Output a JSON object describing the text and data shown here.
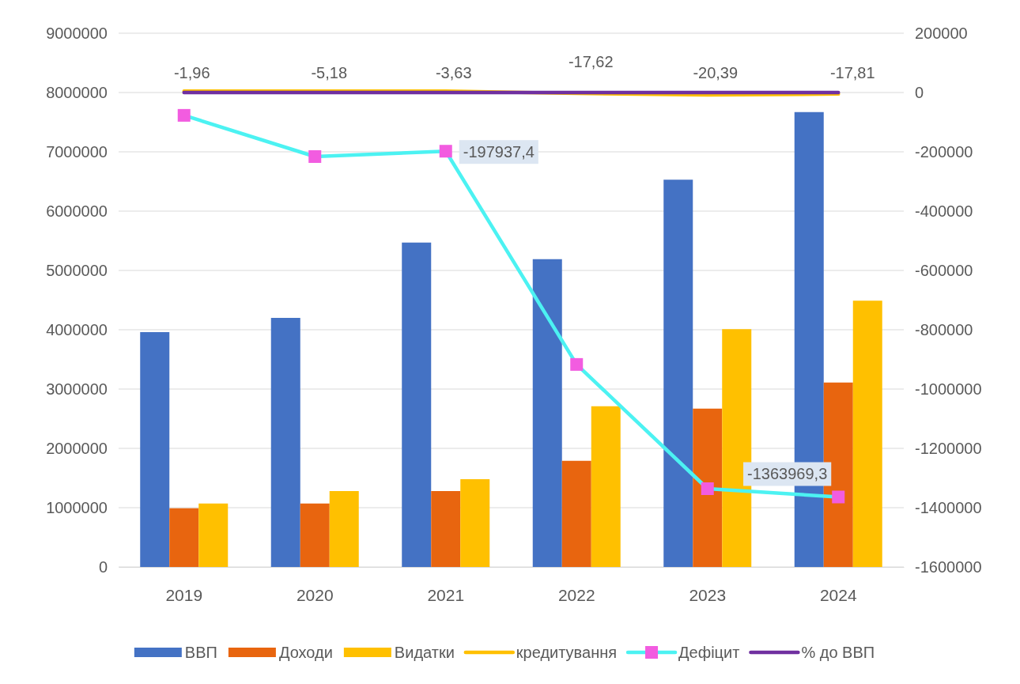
{
  "chart_data": {
    "type": "bar",
    "categories": [
      "2019",
      "2020",
      "2021",
      "2022",
      "2023",
      "2024"
    ],
    "series": [
      {
        "name": "ВВП",
        "color": "#4472c4",
        "values": [
          3960000,
          4200000,
          5470000,
          5190000,
          6530000,
          7670000
        ]
      },
      {
        "name": "Доходи",
        "color": "#e8650f",
        "values": [
          990000,
          1070000,
          1280000,
          1790000,
          2670000,
          3110000
        ]
      },
      {
        "name": "Видатки",
        "color": "#ffc000",
        "values": [
          1070000,
          1280000,
          1480000,
          2710000,
          4010000,
          4490000
        ]
      },
      {
        "name": "кредитування",
        "type": "line",
        "axis": "y2",
        "color": "#ffc000",
        "marker": "none",
        "values": [
          5000,
          5000,
          5000,
          -3000,
          -8000,
          -5000
        ]
      },
      {
        "name": "Дефіцит",
        "type": "line",
        "axis": "y2",
        "color": "#4cf2f2",
        "marker": "square",
        "values": [
          -77000,
          -216000,
          -197937.4,
          -917000,
          -1336000,
          -1363969.3
        ],
        "value_labels": [
          null,
          null,
          "-197937,4",
          null,
          null,
          "-1363969,3"
        ]
      },
      {
        "name": "% до ВВП",
        "type": "line",
        "axis": "y2",
        "color": "#7030a0",
        "marker": "none",
        "values": [
          -1.96,
          -5.18,
          -3.63,
          -17.62,
          -20.39,
          -17.81
        ],
        "value_labels": [
          "-1,96",
          "-5,18",
          "-3,63",
          "-17,62",
          "-20,39",
          "-17,81"
        ]
      }
    ],
    "ylim": [
      0,
      9000000
    ],
    "yticks": [
      0,
      1000000,
      2000000,
      3000000,
      4000000,
      5000000,
      6000000,
      7000000,
      8000000,
      9000000
    ],
    "y2lim": [
      -1600000,
      200000
    ],
    "y2ticks": [
      -1600000,
      -1400000,
      -1200000,
      -1000000,
      -800000,
      -600000,
      -400000,
      -200000,
      0,
      200000
    ],
    "grid": "y",
    "legend": "bottom",
    "line_style": "solid"
  }
}
